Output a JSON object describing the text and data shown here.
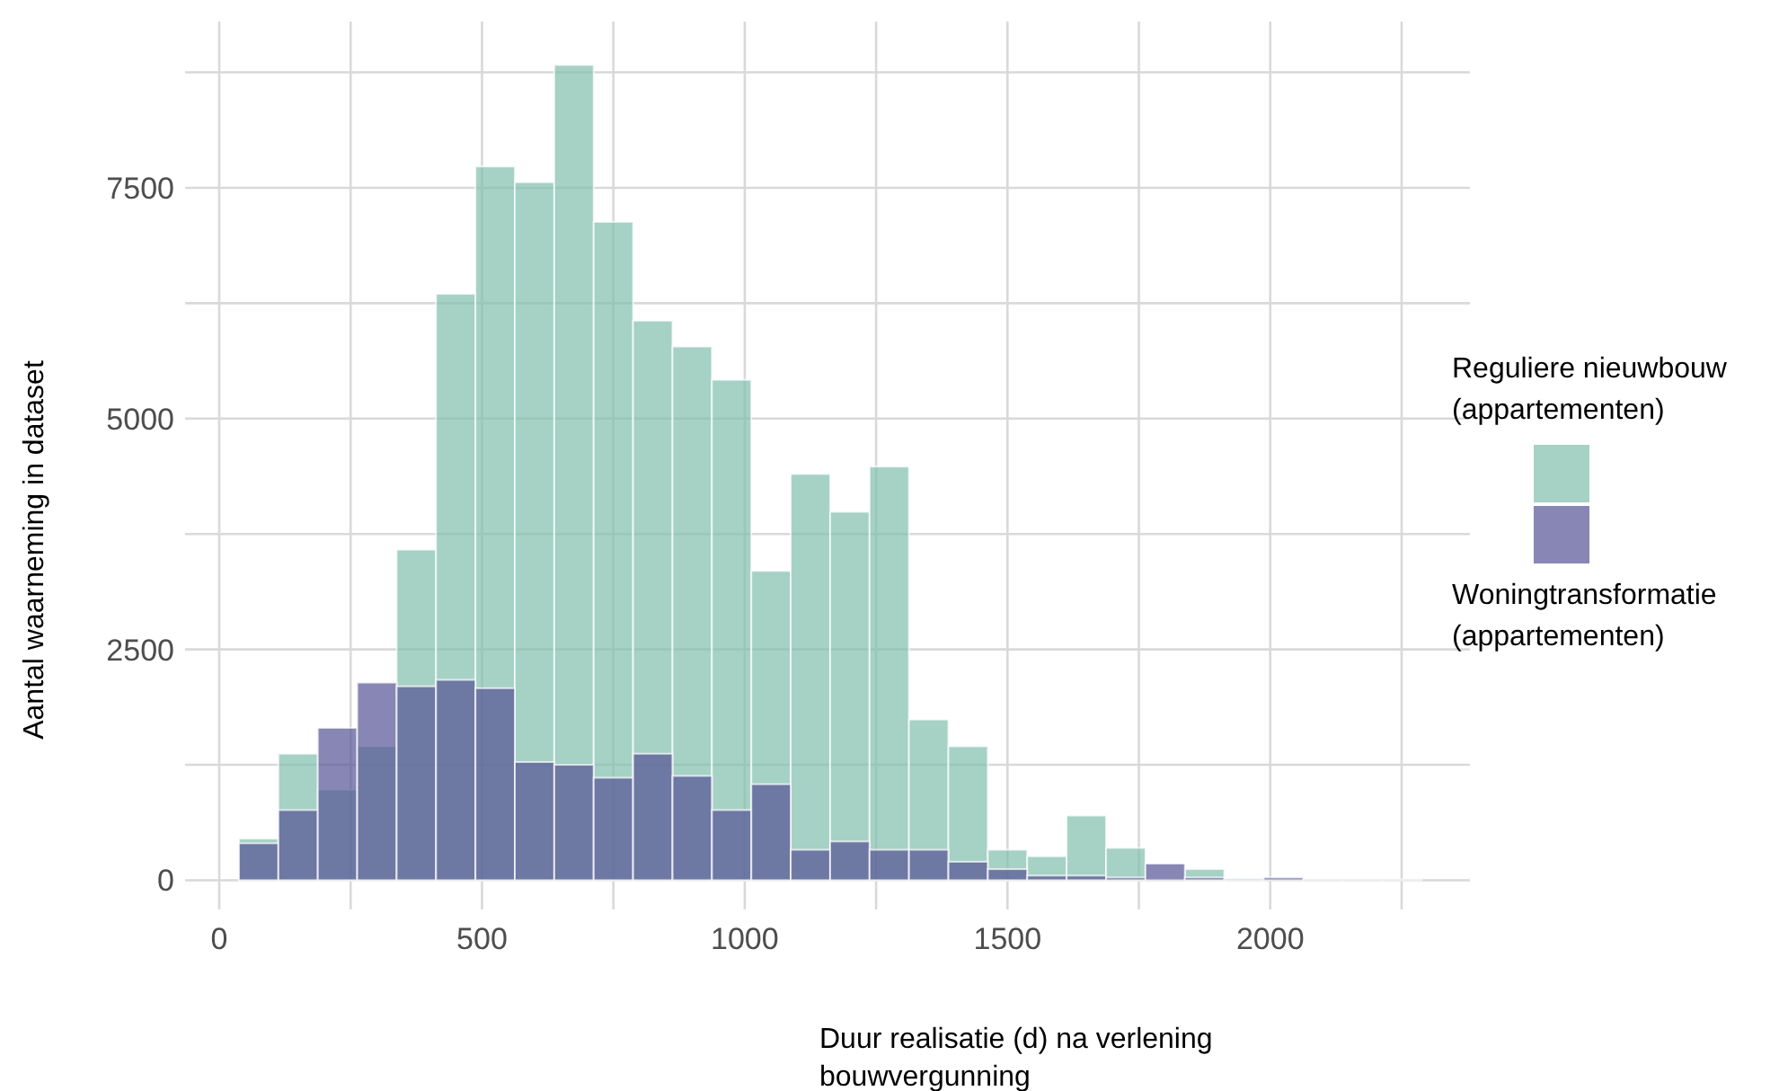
{
  "chart_data": {
    "type": "histogram",
    "xlabel": "Duur realisatie (d) na verlening bouwvergunning",
    "ylabel": "Aantal waarneming in dataset",
    "bins": [
      37.5,
      112.5,
      187.5,
      262.5,
      337.5,
      412.5,
      487.5,
      562.5,
      637.5,
      712.5,
      787.5,
      862.5,
      937.5,
      1012.5,
      1087.5,
      1162.5,
      1237.5,
      1312.5,
      1387.5,
      1462.5,
      1537.5,
      1612.5,
      1687.5,
      1762.5,
      1837.5,
      1912.5,
      1987.5,
      2062.5,
      2137.5,
      2212.5,
      2287.5
    ],
    "series": [
      {
        "name": "Reguliere nieuwbouw (appartementen)",
        "color": "#80bdac",
        "values": [
          450,
          1370,
          980,
          1450,
          3580,
          6350,
          7730,
          7560,
          8830,
          7130,
          6060,
          5780,
          5420,
          3350,
          4400,
          3990,
          4480,
          1740,
          1450,
          330,
          260,
          700,
          350,
          null,
          120,
          20,
          null,
          10,
          10,
          10
        ]
      },
      {
        "name": "Woningtransformatie (appartementen)",
        "color": "#555294",
        "values": [
          400,
          760,
          1650,
          2140,
          2100,
          2170,
          2080,
          1280,
          1250,
          1110,
          1370,
          1130,
          760,
          1040,
          330,
          420,
          330,
          330,
          200,
          120,
          50,
          50,
          30,
          180,
          30,
          10,
          30,
          0,
          0,
          0
        ]
      }
    ],
    "xlim": [
      -65,
      2380
    ],
    "ylim": [
      -200,
      9300
    ],
    "xticks": [
      0,
      {
        "value": 250,
        "label": null
      },
      500,
      {
        "value": 750,
        "label": null
      },
      1000,
      {
        "value": 1250,
        "label": null
      },
      1500,
      {
        "value": 1750,
        "label": null
      },
      2000,
      {
        "value": 2250,
        "label": null
      }
    ],
    "yticks": [
      0,
      {
        "value": 1250,
        "label": null
      },
      2500,
      {
        "value": 3750,
        "label": null
      },
      5000,
      {
        "value": 6250,
        "label": null
      },
      7500,
      {
        "value": 8750,
        "label": null
      }
    ],
    "grid": true,
    "legend": "right"
  }
}
